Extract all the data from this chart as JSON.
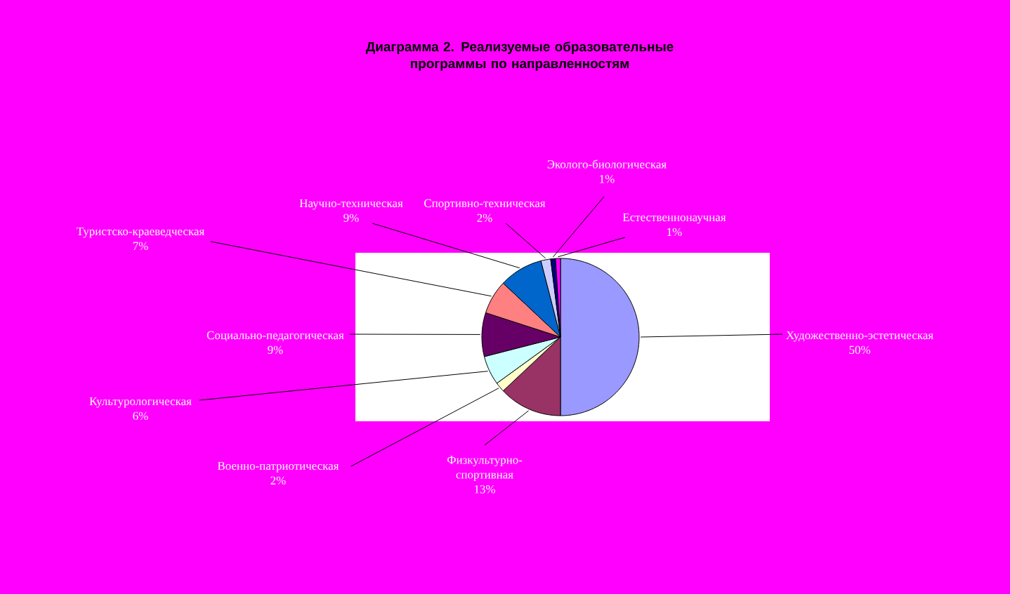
{
  "chart_data": {
    "type": "pie",
    "title": "Диаграмма 2. Реализуемые образовательные программы по направленностям",
    "categories": [
      "Художественно-эстетическая",
      "Физкультурно-спортивная",
      "Военно-патриотическая",
      "Культурологическая",
      "Социально-педагогическая",
      "Туристско-краеведческая",
      "Научно-техническая",
      "Спортивно-техническая",
      "Эколого-биологическая",
      "Естественнонаучная"
    ],
    "values": [
      50,
      13,
      2,
      6,
      9,
      7,
      9,
      2,
      1,
      1
    ],
    "value_labels": [
      "50%",
      "13%",
      "2%",
      "6%",
      "9%",
      "7%",
      "9%",
      "2%",
      "1%",
      "1%"
    ],
    "colors": [
      "#9999ff",
      "#993366",
      "#ffffcc",
      "#ccffff",
      "#660066",
      "#ff8080",
      "#0066cc",
      "#ccccff",
      "#000080",
      "#ff00ff"
    ]
  }
}
